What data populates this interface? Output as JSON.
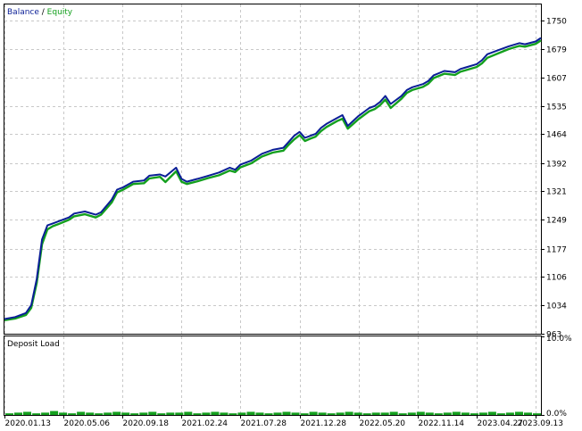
{
  "chart_data": [
    {
      "type": "line",
      "legend": [
        {
          "name": "Balance",
          "color": "#0a1e96"
        },
        {
          "name": "Equity",
          "color": "#14a01e"
        }
      ],
      "legend_separator": " / ",
      "legend_position": "top-left",
      "grid": true,
      "ylim": [
        963,
        1790
      ],
      "yticks": [
        "1750",
        "1679",
        "1607",
        "1535",
        "1464",
        "1392",
        "1321",
        "1249",
        "1177",
        "1106",
        "1034",
        "963"
      ],
      "ytick_values": [
        1750,
        1679,
        1607,
        1535,
        1464,
        1392,
        1321,
        1249,
        1177,
        1106,
        1034,
        963
      ],
      "xticks": [
        "2020.01.13",
        "2020.05.06",
        "2020.09.18",
        "2021.02.24",
        "2021.07.28",
        "2021.12.28",
        "2022.05.20",
        "2022.11.14",
        "2023.04.27",
        "2023.09.13"
      ],
      "trade_index_range": [
        0,
        100
      ],
      "series": [
        {
          "name": "Balance",
          "color": "#0a1e96",
          "x": [
            0,
            2,
            4,
            5,
            6,
            7,
            8,
            9,
            10,
            12,
            13,
            15,
            17,
            18,
            20,
            21,
            22,
            24,
            26,
            27,
            29,
            30,
            32,
            33,
            34,
            36,
            38,
            40,
            42,
            43,
            44,
            46,
            48,
            50,
            52,
            53,
            54,
            55,
            56,
            57,
            58,
            59,
            60,
            62,
            63,
            64,
            66,
            67,
            68,
            69,
            70,
            71,
            72,
            74,
            75,
            76,
            78,
            79,
            80,
            82,
            84,
            85,
            86,
            88,
            89,
            90,
            92,
            94,
            96,
            97,
            99,
            100
          ],
          "y": [
            1000,
            1005,
            1015,
            1035,
            1100,
            1200,
            1235,
            1240,
            1245,
            1255,
            1265,
            1270,
            1262,
            1268,
            1300,
            1325,
            1330,
            1345,
            1348,
            1360,
            1363,
            1358,
            1380,
            1352,
            1345,
            1352,
            1360,
            1368,
            1380,
            1375,
            1388,
            1398,
            1415,
            1425,
            1430,
            1445,
            1460,
            1470,
            1455,
            1460,
            1465,
            1480,
            1490,
            1505,
            1512,
            1485,
            1510,
            1520,
            1530,
            1535,
            1545,
            1560,
            1540,
            1560,
            1575,
            1582,
            1590,
            1598,
            1612,
            1623,
            1620,
            1628,
            1632,
            1640,
            1650,
            1665,
            1675,
            1685,
            1693,
            1690,
            1697,
            1706
          ]
        },
        {
          "name": "Equity",
          "color": "#14a01e",
          "x": [
            0,
            2,
            4,
            5,
            6,
            7,
            8,
            9,
            10,
            12,
            13,
            15,
            17,
            18,
            20,
            21,
            22,
            24,
            26,
            27,
            29,
            30,
            32,
            33,
            34,
            36,
            38,
            40,
            42,
            43,
            44,
            46,
            48,
            50,
            52,
            53,
            54,
            55,
            56,
            57,
            58,
            59,
            60,
            62,
            63,
            64,
            66,
            67,
            68,
            69,
            70,
            71,
            72,
            74,
            75,
            76,
            78,
            79,
            80,
            82,
            84,
            85,
            86,
            88,
            89,
            90,
            92,
            94,
            96,
            97,
            99,
            100
          ],
          "y": [
            997,
            1001,
            1010,
            1028,
            1090,
            1188,
            1225,
            1233,
            1238,
            1249,
            1258,
            1263,
            1255,
            1262,
            1293,
            1318,
            1324,
            1339,
            1341,
            1353,
            1357,
            1344,
            1371,
            1345,
            1339,
            1346,
            1354,
            1361,
            1373,
            1369,
            1381,
            1391,
            1408,
            1418,
            1423,
            1438,
            1451,
            1462,
            1447,
            1453,
            1458,
            1472,
            1482,
            1497,
            1503,
            1478,
            1502,
            1512,
            1522,
            1527,
            1537,
            1551,
            1530,
            1553,
            1568,
            1575,
            1583,
            1591,
            1605,
            1616,
            1613,
            1621,
            1625,
            1633,
            1642,
            1656,
            1667,
            1678,
            1686,
            1684,
            1691,
            1700
          ]
        }
      ]
    },
    {
      "type": "bar",
      "title": "Deposit Load",
      "title_position": "top-left",
      "grid": true,
      "ylim": [
        0,
        10
      ],
      "yticks": [
        "10.0%",
        "0.0%"
      ],
      "color": "#14a01e",
      "trade_index_range": [
        0,
        100
      ],
      "values": [
        0.2,
        0.3,
        0.4,
        0.2,
        0.3,
        0.5,
        0.3,
        0.2,
        0.4,
        0.3,
        0.2,
        0.3,
        0.4,
        0.3,
        0.2,
        0.3,
        0.4,
        0.2,
        0.3,
        0.3,
        0.4,
        0.2,
        0.3,
        0.4,
        0.3,
        0.2,
        0.3,
        0.4,
        0.3,
        0.2,
        0.3,
        0.4,
        0.3,
        0.2,
        0.4,
        0.3,
        0.2,
        0.3,
        0.4,
        0.3,
        0.2,
        0.3,
        0.3,
        0.4,
        0.2,
        0.3,
        0.4,
        0.3,
        0.2,
        0.3,
        0.4,
        0.3,
        0.2,
        0.3,
        0.4,
        0.2,
        0.3,
        0.4,
        0.3,
        0.2
      ]
    }
  ]
}
